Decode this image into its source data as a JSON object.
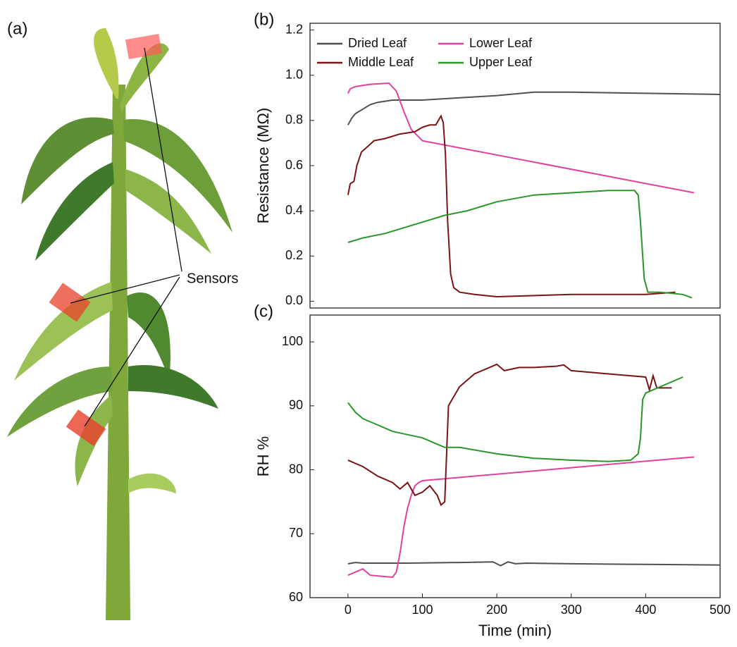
{
  "illustration": {
    "label": "(a)",
    "annotation": "Sensors"
  },
  "chart_data": [
    {
      "type": "line",
      "label": "(b)",
      "y_label": "Resistance (MΩ)",
      "xlim": [
        -51,
        500
      ],
      "ylim": [
        -0.03,
        1.23
      ],
      "yticks": [
        {
          "value": 0,
          "label": "0.0"
        },
        0.2,
        0.4,
        0.6,
        0.8,
        {
          "value": 1,
          "label": "1.0"
        },
        1.2
      ],
      "series": [
        {
          "name": "Dried Leaf",
          "color": "#505050",
          "x": [
            0,
            5,
            10,
            20,
            30,
            40,
            60,
            80,
            100,
            150,
            200,
            250,
            300,
            400,
            500
          ],
          "values": [
            0.78,
            0.81,
            0.83,
            0.85,
            0.87,
            0.88,
            0.89,
            0.89,
            0.89,
            0.9,
            0.91,
            0.925,
            0.925,
            0.92,
            0.915
          ]
        },
        {
          "name": "Lower Leaf",
          "color": "#e0409e",
          "x": [
            0,
            3,
            10,
            30,
            55,
            65,
            75,
            85,
            100,
            465
          ],
          "values": [
            0.92,
            0.94,
            0.95,
            0.96,
            0.965,
            0.93,
            0.84,
            0.76,
            0.71,
            0.48
          ]
        },
        {
          "name": "Middle Leaf",
          "color": "#7a1414",
          "x": [
            0,
            3,
            8,
            12,
            18,
            25,
            35,
            50,
            70,
            90,
            100,
            110,
            118,
            125,
            128,
            131,
            134,
            138,
            142,
            150,
            170,
            200,
            300,
            400,
            440
          ],
          "values": [
            0.47,
            0.52,
            0.53,
            0.6,
            0.66,
            0.68,
            0.71,
            0.72,
            0.74,
            0.75,
            0.77,
            0.78,
            0.78,
            0.82,
            0.79,
            0.65,
            0.35,
            0.12,
            0.06,
            0.04,
            0.03,
            0.02,
            0.03,
            0.03,
            0.04
          ]
        },
        {
          "name": "Upper Leaf",
          "color": "#2a962a",
          "x": [
            0,
            20,
            50,
            80,
            100,
            130,
            160,
            200,
            250,
            300,
            350,
            385,
            390,
            393,
            398,
            403,
            420,
            450,
            462
          ],
          "values": [
            0.26,
            0.28,
            0.3,
            0.33,
            0.35,
            0.38,
            0.4,
            0.44,
            0.47,
            0.48,
            0.49,
            0.49,
            0.47,
            0.35,
            0.1,
            0.04,
            0.04,
            0.03,
            0.015
          ]
        }
      ]
    },
    {
      "type": "line",
      "label": "(c)",
      "y_label": "RH %",
      "x_label": "Time (min)",
      "xlim": [
        -51,
        500
      ],
      "ylim": [
        60,
        104.2
      ],
      "xticks": [
        0,
        100,
        200,
        300,
        400,
        500
      ],
      "yticks": [
        60,
        70,
        80,
        90,
        100
      ],
      "series": [
        {
          "name": "Dried Leaf",
          "color": "#505050",
          "x": [
            0,
            10,
            20,
            40,
            80,
            150,
            195,
            205,
            215,
            225,
            240,
            300,
            400,
            500
          ],
          "values": [
            65.3,
            65.5,
            65.4,
            65.4,
            65.4,
            65.5,
            65.6,
            65.0,
            65.6,
            65.3,
            65.4,
            65.3,
            65.2,
            65.1
          ]
        },
        {
          "name": "Lower Leaf",
          "color": "#e0409e",
          "x": [
            0,
            10,
            20,
            30,
            50,
            60,
            65,
            70,
            75,
            80,
            85,
            90,
            95,
            100,
            465
          ],
          "values": [
            63.5,
            64,
            64.5,
            63.5,
            63.3,
            63.2,
            64,
            67,
            71,
            74,
            76,
            77.5,
            78,
            78.3,
            82
          ]
        },
        {
          "name": "Middle Leaf",
          "color": "#7a1414",
          "x": [
            0,
            10,
            20,
            40,
            60,
            70,
            80,
            90,
            100,
            110,
            120,
            125,
            130,
            135,
            140,
            150,
            170,
            200,
            210,
            230,
            250,
            280,
            290,
            300,
            350,
            400,
            405,
            410,
            415,
            435
          ],
          "values": [
            81.5,
            81,
            80.5,
            79,
            78,
            77,
            78,
            76,
            76.5,
            77.5,
            76,
            74.5,
            75,
            90,
            91,
            93,
            95,
            96.5,
            95.5,
            96,
            96,
            96.2,
            96.4,
            95.5,
            95,
            94.5,
            92.5,
            94.7,
            92.8,
            92.8
          ]
        },
        {
          "name": "Upper Leaf",
          "color": "#2a962a",
          "x": [
            0,
            10,
            20,
            30,
            40,
            50,
            60,
            80,
            100,
            120,
            130,
            150,
            200,
            250,
            300,
            350,
            380,
            385,
            390,
            393,
            396,
            400,
            410,
            420,
            450
          ],
          "values": [
            90.5,
            89,
            88,
            87.5,
            87,
            86.5,
            86,
            85.5,
            85,
            84,
            83.5,
            83.5,
            82.5,
            81.8,
            81.5,
            81.3,
            81.5,
            82,
            82.5,
            85,
            91,
            92,
            92.5,
            93,
            94.5
          ]
        }
      ]
    }
  ]
}
